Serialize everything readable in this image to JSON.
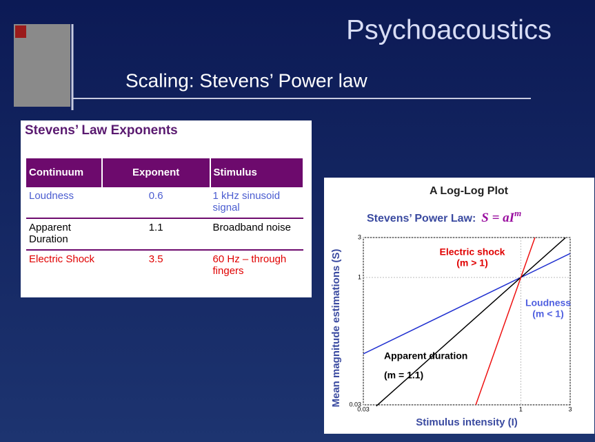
{
  "header": {
    "title": "Psychoacoustics",
    "subtitle": "Scaling: Stevens’ Power law"
  },
  "table": {
    "title": "Stevens’ Law Exponents",
    "columns": [
      "Continuum",
      "Exponent",
      "Stimulus"
    ],
    "rows": [
      [
        "Loudness",
        "0.6",
        "1 kHz sinusoid signal"
      ],
      [
        "Apparent Duration",
        "1.1",
        "Broadband noise"
      ],
      [
        "Electric Shock",
        "3.5",
        "60 Hz – through fingers"
      ]
    ],
    "row_colors": [
      "#4a5cd0",
      "#000000",
      "#e00000"
    ]
  },
  "chart_data": {
    "type": "line",
    "title": "A Log-Log Plot",
    "subtitle": "Stevens’ Power Law:",
    "formula": "S = aI",
    "formula_exponent": "m",
    "xlabel": "Stimulus intensity (I)",
    "ylabel": "Mean magnitude estimations (S)",
    "log_x": true,
    "log_y": true,
    "grid": true,
    "xlim": [
      0.03,
      3
    ],
    "ylim": [
      0.03,
      3
    ],
    "xticks": [
      0.03,
      1,
      3
    ],
    "yticks": [
      0.03,
      1,
      3
    ],
    "series": [
      {
        "name": "Loudness",
        "annotation": "(m < 1)",
        "color": "#2030d0",
        "x": [
          0.03,
          1,
          3
        ],
        "values": [
          0.122,
          1,
          1.933
        ]
      },
      {
        "name": "Apparent duration",
        "annotation": "(m = 1.1)",
        "color": "#000000",
        "x": [
          0.04,
          1,
          2.7
        ],
        "values": [
          0.029,
          1,
          2.98
        ]
      },
      {
        "name": "Electric shock",
        "annotation": "(m > 1)",
        "color": "#ee1010",
        "x": [
          0.367,
          1,
          1.369
        ],
        "values": [
          0.03,
          1,
          3
        ]
      }
    ]
  }
}
